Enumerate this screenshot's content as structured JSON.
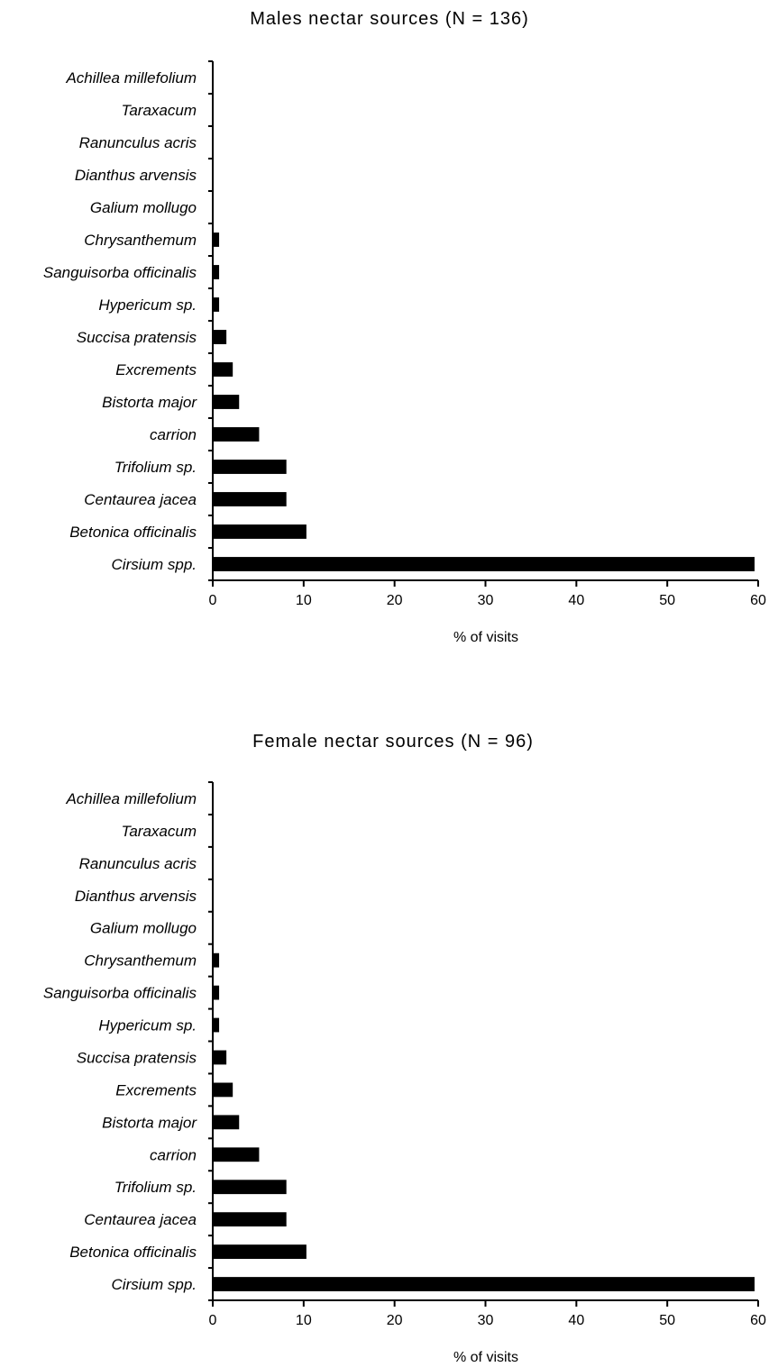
{
  "colors": {
    "bar": "#000000",
    "axis": "#000000",
    "background": "#ffffff"
  },
  "chart_data": [
    {
      "type": "bar",
      "orientation": "horizontal",
      "title": "Males nectar sources (N = 136)",
      "xlabel": "% of visits",
      "ylabel": "",
      "xlim": [
        0,
        60
      ],
      "xticks": [
        0,
        10,
        20,
        30,
        40,
        50,
        60
      ],
      "grid": false,
      "categories": [
        "Achillea millefolium",
        "Taraxacum",
        "Ranunculus acris",
        "Dianthus arvensis",
        "Galium mollugo",
        "Chrysanthemum",
        "Sanguisorba officinalis",
        "Hypericum sp.",
        "Succisa pratensis",
        "Excrements",
        "Bistorta major",
        "carrion",
        "Trifolium sp.",
        "Centaurea jacea",
        "Betonica officinalis",
        "Cirsium spp."
      ],
      "values": [
        0,
        0,
        0,
        0,
        0,
        0.7,
        0.7,
        0.7,
        1.5,
        2.2,
        2.9,
        5.1,
        8.1,
        8.1,
        10.3,
        59.6
      ]
    },
    {
      "type": "bar",
      "orientation": "horizontal",
      "title": "Female nectar sources (N = 96)",
      "xlabel": "% of visits",
      "ylabel": "",
      "xlim": [
        0,
        60
      ],
      "xticks": [
        0,
        10,
        20,
        30,
        40,
        50,
        60
      ],
      "grid": false,
      "categories": [
        "Achillea millefolium",
        "Taraxacum",
        "Ranunculus acris",
        "Dianthus arvensis",
        "Galium mollugo",
        "Chrysanthemum",
        "Sanguisorba officinalis",
        "Hypericum sp.",
        "Succisa pratensis",
        "Excrements",
        "Bistorta major",
        "carrion",
        "Trifolium sp.",
        "Centaurea jacea",
        "Betonica officinalis",
        "Cirsium spp."
      ],
      "values": [
        0,
        0,
        0,
        0,
        0,
        0.7,
        0.7,
        0.7,
        1.5,
        2.2,
        2.9,
        5.1,
        8.1,
        8.1,
        10.3,
        59.6
      ]
    }
  ]
}
